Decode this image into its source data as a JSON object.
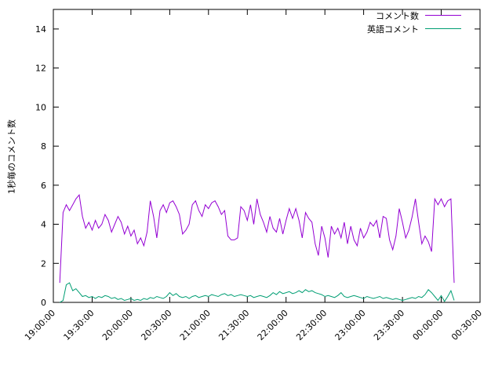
{
  "chart_data": {
    "type": "line",
    "title": "",
    "xlabel": "",
    "ylabel": "1秒毎のコメント数",
    "ylim": [
      0,
      15
    ],
    "yticks": [
      0,
      2,
      4,
      6,
      8,
      10,
      12,
      14
    ],
    "xlim_minutes": [
      0,
      330
    ],
    "xticks": [
      {
        "m": 0,
        "label": "19:00:00"
      },
      {
        "m": 30,
        "label": "19:30:00"
      },
      {
        "m": 60,
        "label": "20:00:00"
      },
      {
        "m": 90,
        "label": "20:30:00"
      },
      {
        "m": 120,
        "label": "21:00:00"
      },
      {
        "m": 150,
        "label": "21:30:00"
      },
      {
        "m": 180,
        "label": "22:00:00"
      },
      {
        "m": 210,
        "label": "22:30:00"
      },
      {
        "m": 240,
        "label": "23:00:00"
      },
      {
        "m": 270,
        "label": "23:30:00"
      },
      {
        "m": 300,
        "label": "00:00:00"
      },
      {
        "m": 330,
        "label": "00:30:00"
      }
    ],
    "grid": false,
    "legend_position": "top-right",
    "plot": {
      "background": "#ffffff",
      "border_color": "#000000"
    },
    "series": [
      {
        "name": "コメント数",
        "color": "#9400d3",
        "x_start_minutes": 5,
        "x_step_minutes": 2.5,
        "values": [
          1.0,
          4.6,
          5.0,
          4.7,
          5.0,
          5.3,
          5.5,
          4.4,
          3.8,
          4.1,
          3.7,
          4.2,
          3.8,
          4.0,
          4.5,
          4.2,
          3.6,
          4.0,
          4.4,
          4.1,
          3.5,
          3.9,
          3.4,
          3.7,
          3.0,
          3.3,
          2.9,
          3.6,
          5.2,
          4.4,
          3.3,
          4.7,
          5.0,
          4.6,
          5.1,
          5.2,
          4.9,
          4.5,
          3.5,
          3.7,
          4.0,
          5.0,
          5.2,
          4.7,
          4.4,
          5.0,
          4.8,
          5.1,
          5.2,
          4.9,
          4.5,
          4.7,
          3.4,
          3.2,
          3.2,
          3.3,
          4.9,
          4.7,
          4.2,
          5.0,
          4.0,
          5.3,
          4.5,
          4.1,
          3.6,
          4.4,
          3.8,
          3.6,
          4.3,
          3.5,
          4.2,
          4.8,
          4.3,
          4.8,
          4.2,
          3.3,
          4.6,
          4.3,
          4.1,
          3.0,
          2.4,
          3.9,
          3.3,
          2.3,
          3.9,
          3.5,
          3.8,
          3.3,
          4.1,
          3.0,
          3.9,
          3.2,
          2.9,
          3.8,
          3.3,
          3.6,
          4.1,
          3.9,
          4.2,
          3.3,
          4.4,
          4.3,
          3.2,
          2.7,
          3.4,
          4.8,
          4.1,
          3.3,
          3.7,
          4.4,
          5.3,
          4.1,
          3.0,
          3.4,
          3.1,
          2.6,
          5.3,
          5.0,
          5.3,
          4.9,
          5.2,
          5.3,
          1.0
        ]
      },
      {
        "name": "英語コメント",
        "color": "#009e73",
        "x_start_minutes": 5,
        "x_step_minutes": 2.5,
        "values": [
          0.0,
          0.1,
          0.9,
          1.0,
          0.6,
          0.7,
          0.5,
          0.3,
          0.35,
          0.25,
          0.3,
          0.2,
          0.3,
          0.25,
          0.35,
          0.3,
          0.2,
          0.25,
          0.15,
          0.2,
          0.1,
          0.15,
          0.2,
          0.1,
          0.15,
          0.1,
          0.2,
          0.15,
          0.25,
          0.2,
          0.3,
          0.25,
          0.2,
          0.3,
          0.5,
          0.35,
          0.45,
          0.3,
          0.25,
          0.3,
          0.2,
          0.3,
          0.35,
          0.25,
          0.3,
          0.35,
          0.3,
          0.4,
          0.35,
          0.3,
          0.4,
          0.45,
          0.35,
          0.4,
          0.3,
          0.35,
          0.4,
          0.35,
          0.3,
          0.35,
          0.25,
          0.3,
          0.35,
          0.3,
          0.25,
          0.35,
          0.5,
          0.4,
          0.55,
          0.45,
          0.5,
          0.55,
          0.45,
          0.5,
          0.6,
          0.5,
          0.65,
          0.55,
          0.6,
          0.5,
          0.45,
          0.4,
          0.3,
          0.35,
          0.3,
          0.25,
          0.35,
          0.5,
          0.3,
          0.25,
          0.3,
          0.35,
          0.3,
          0.25,
          0.2,
          0.3,
          0.25,
          0.2,
          0.25,
          0.3,
          0.2,
          0.25,
          0.2,
          0.15,
          0.2,
          0.15,
          0.1,
          0.15,
          0.2,
          0.25,
          0.2,
          0.3,
          0.25,
          0.4,
          0.65,
          0.5,
          0.3,
          0.1,
          0.35,
          0.05,
          0.3,
          0.6,
          0.1
        ]
      }
    ]
  }
}
